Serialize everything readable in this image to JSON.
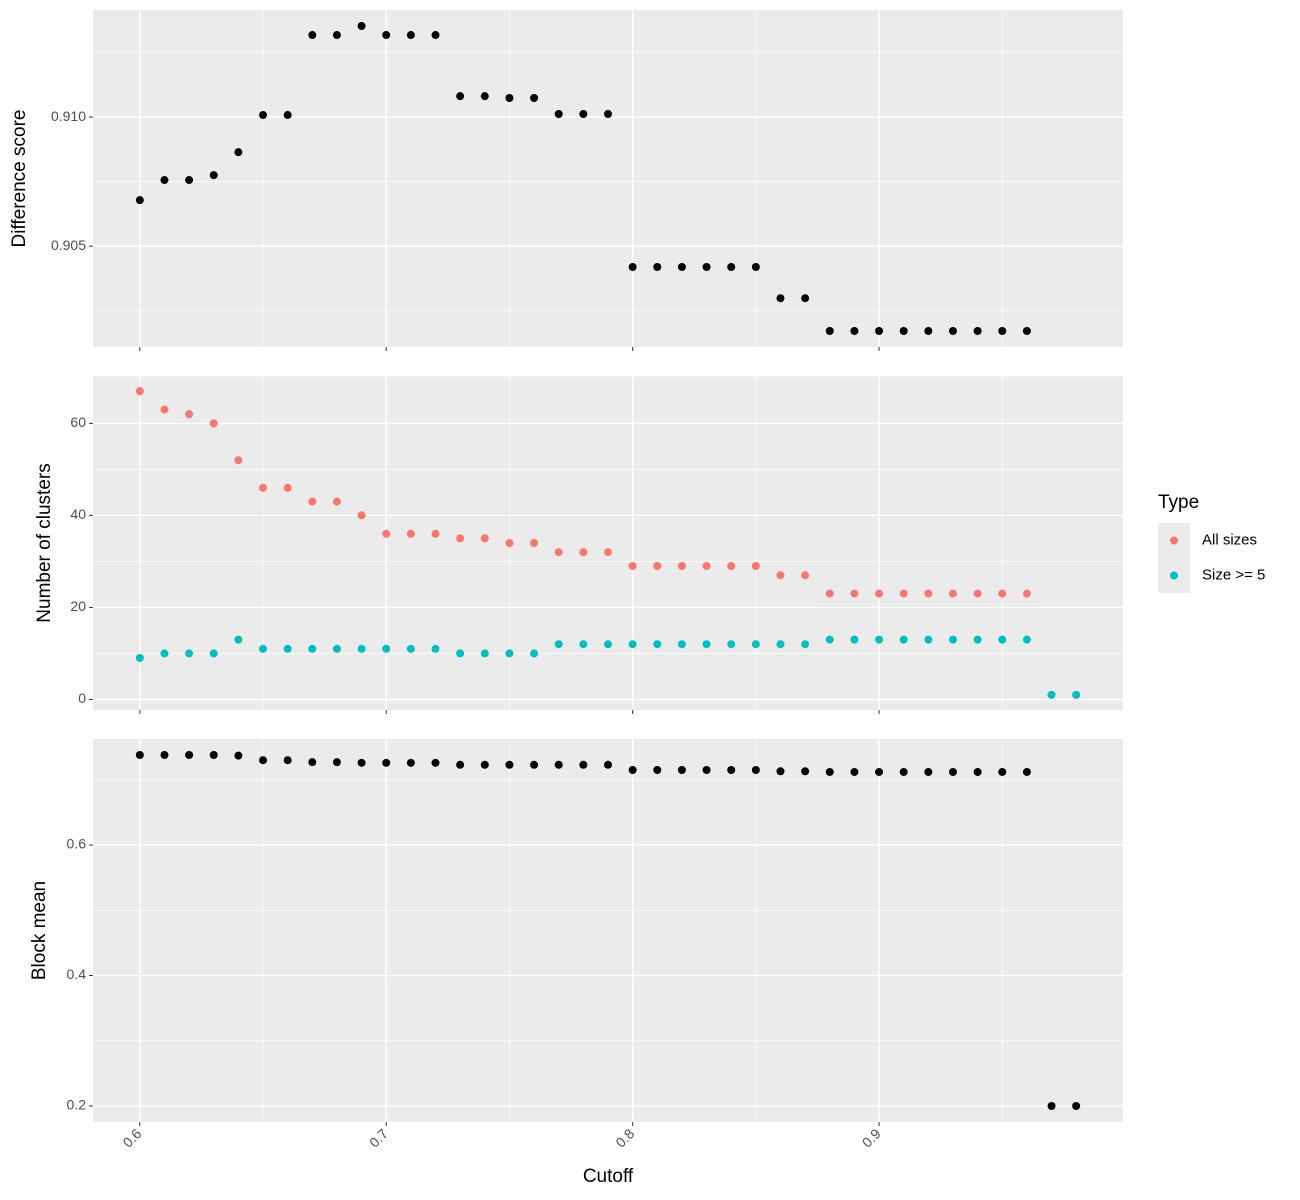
{
  "chart_data": [
    {
      "type": "scatter",
      "y_label": "Difference score",
      "x": [
        0.6,
        0.61,
        0.62,
        0.63,
        0.64,
        0.65,
        0.66,
        0.67,
        0.68,
        0.69,
        0.7,
        0.71,
        0.72,
        0.73,
        0.74,
        0.75,
        0.76,
        0.77,
        0.78,
        0.79,
        0.8,
        0.81,
        0.82,
        0.83,
        0.84,
        0.85,
        0.86,
        0.87,
        0.88,
        0.89,
        0.9,
        0.91,
        0.92,
        0.93,
        0.94,
        0.95,
        0.96,
        0.97,
        0.98
      ],
      "series": [
        {
          "color": "#000000",
          "values": [
            0.90678,
            0.90756,
            0.90756,
            0.90775,
            0.90864,
            0.91008,
            0.91008,
            0.91318,
            0.91318,
            0.91353,
            0.91318,
            0.91318,
            0.91318,
            0.91081,
            0.91081,
            0.91074,
            0.91074,
            0.91012,
            0.91012,
            0.91012,
            0.90419,
            0.90419,
            0.90419,
            0.90419,
            0.90419,
            0.90419,
            0.90298,
            0.90298,
            0.90171,
            0.90171,
            0.90171,
            0.90171,
            0.90171,
            0.90171,
            0.90171,
            0.90171,
            0.90171,
            null,
            null
          ]
        }
      ],
      "xlim": [
        0.581,
        0.999
      ],
      "xticks": [
        0.6,
        0.7,
        0.8,
        0.9
      ],
      "ylim": [
        0.90109,
        0.91415
      ],
      "yticks": [
        0.905,
        {
          "value": 0.91,
          "label": "0.910"
        }
      ],
      "grid": true
    },
    {
      "type": "scatter",
      "y_label": "Number of clusters",
      "legend_title": "Type",
      "legend_position": "right",
      "x": [
        0.6,
        0.61,
        0.62,
        0.63,
        0.64,
        0.65,
        0.66,
        0.67,
        0.68,
        0.69,
        0.7,
        0.71,
        0.72,
        0.73,
        0.74,
        0.75,
        0.76,
        0.77,
        0.78,
        0.79,
        0.8,
        0.81,
        0.82,
        0.83,
        0.84,
        0.85,
        0.86,
        0.87,
        0.88,
        0.89,
        0.9,
        0.91,
        0.92,
        0.93,
        0.94,
        0.95,
        0.96,
        0.97,
        0.98
      ],
      "series": [
        {
          "name": "All sizes",
          "color": "#F8766D",
          "values": [
            67,
            63,
            62,
            60,
            52,
            46,
            46,
            43,
            43,
            40,
            36,
            36,
            36,
            35,
            35,
            34,
            34,
            32,
            32,
            32,
            29,
            29,
            29,
            29,
            29,
            29,
            27,
            27,
            23,
            23,
            23,
            23,
            23,
            23,
            23,
            23,
            23,
            1,
            1
          ]
        },
        {
          "name": "Size >= 5",
          "color": "#00BFC4",
          "values": [
            9,
            10,
            10,
            10,
            13,
            11,
            11,
            11,
            11,
            11,
            11,
            11,
            11,
            10,
            10,
            10,
            10,
            12,
            12,
            12,
            12,
            12,
            12,
            12,
            12,
            12,
            12,
            12,
            13,
            13,
            13,
            13,
            13,
            13,
            13,
            13,
            13,
            1,
            1
          ]
        }
      ],
      "xlim": [
        0.581,
        0.999
      ],
      "xticks": [
        0.6,
        0.7,
        0.8,
        0.9
      ],
      "ylim": [
        -2.3,
        70.3
      ],
      "yticks": [
        0,
        20,
        40,
        60
      ],
      "grid": true
    },
    {
      "type": "scatter",
      "y_label": "Block mean",
      "x_label": "Cutoff",
      "x": [
        0.6,
        0.61,
        0.62,
        0.63,
        0.64,
        0.65,
        0.66,
        0.67,
        0.68,
        0.69,
        0.7,
        0.71,
        0.72,
        0.73,
        0.74,
        0.75,
        0.76,
        0.77,
        0.78,
        0.79,
        0.8,
        0.81,
        0.82,
        0.83,
        0.84,
        0.85,
        0.86,
        0.87,
        0.88,
        0.89,
        0.9,
        0.91,
        0.92,
        0.93,
        0.94,
        0.95,
        0.96,
        0.97,
        0.98
      ],
      "series": [
        {
          "color": "#000000",
          "values": [
            0.738,
            0.738,
            0.738,
            0.738,
            0.737,
            0.73,
            0.73,
            0.727,
            0.727,
            0.726,
            0.726,
            0.726,
            0.726,
            0.723,
            0.723,
            0.723,
            0.723,
            0.723,
            0.723,
            0.723,
            0.715,
            0.715,
            0.715,
            0.715,
            0.715,
            0.715,
            0.713,
            0.713,
            0.712,
            0.712,
            0.712,
            0.712,
            0.712,
            0.712,
            0.712,
            0.712,
            0.712,
            0.2,
            0.2
          ]
        }
      ],
      "xlim": [
        0.581,
        0.999
      ],
      "xticks": [
        0.6,
        0.7,
        0.8,
        0.9
      ],
      "ylim": [
        0.1755,
        0.7625
      ],
      "yticks": [
        0.2,
        0.4,
        0.6
      ],
      "grid": true
    }
  ]
}
